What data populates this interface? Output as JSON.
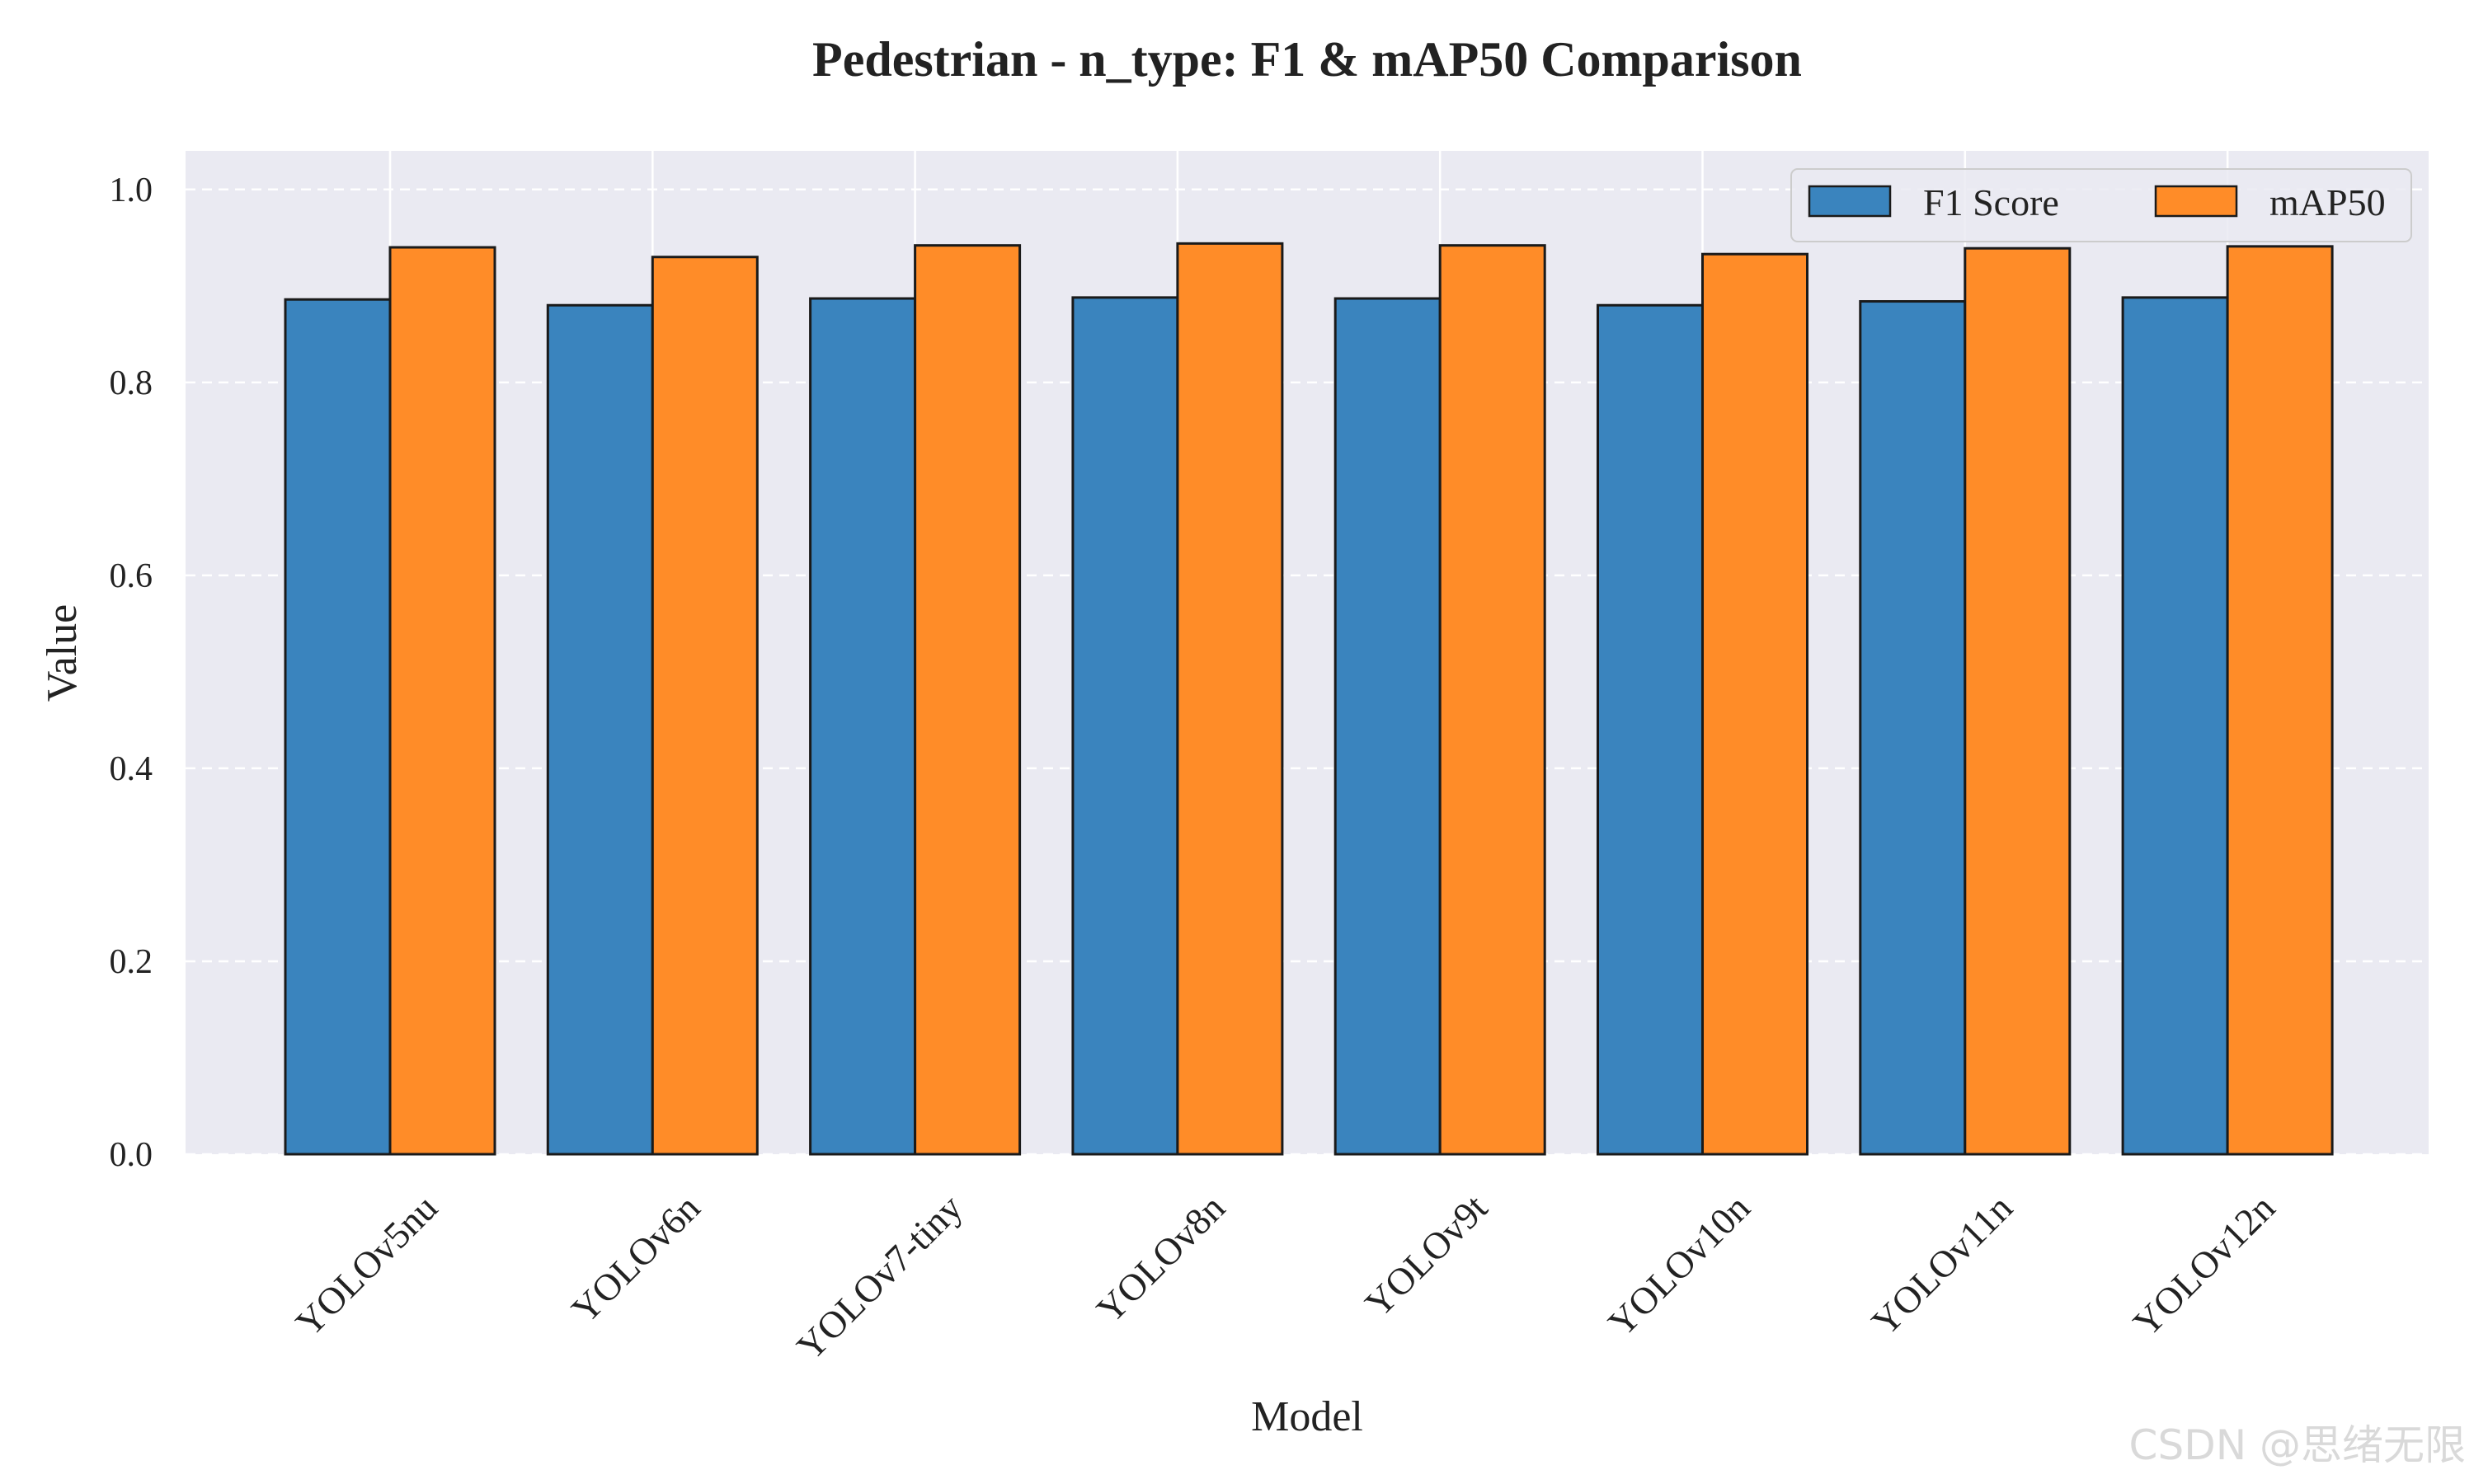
{
  "watermark": "CSDN @思绪无限",
  "chart_data": {
    "type": "bar",
    "title": "Pedestrian - n_type: F1 & mAP50 Comparison",
    "xlabel": "Model",
    "ylabel": "Value",
    "ylim": [
      0,
      1.04
    ],
    "yticks": [
      "0.0",
      "0.2",
      "0.4",
      "0.6",
      "0.8",
      "1.0"
    ],
    "grid": true,
    "legend_position": "top-right",
    "categories": [
      "YOLOv5nu",
      "YOLOv6n",
      "YOLOv7-tiny",
      "YOLOv8n",
      "YOLOv9t",
      "YOLOv10n",
      "YOLOv11n",
      "YOLOv12n"
    ],
    "series": [
      {
        "name": "F1 Score",
        "color": "#3a84be",
        "values": [
          0.886,
          0.88,
          0.887,
          0.888,
          0.887,
          0.88,
          0.884,
          0.888
        ]
      },
      {
        "name": "mAP50",
        "color": "#ff8c28",
        "values": [
          0.94,
          0.93,
          0.942,
          0.944,
          0.942,
          0.933,
          0.939,
          0.941
        ]
      }
    ]
  }
}
